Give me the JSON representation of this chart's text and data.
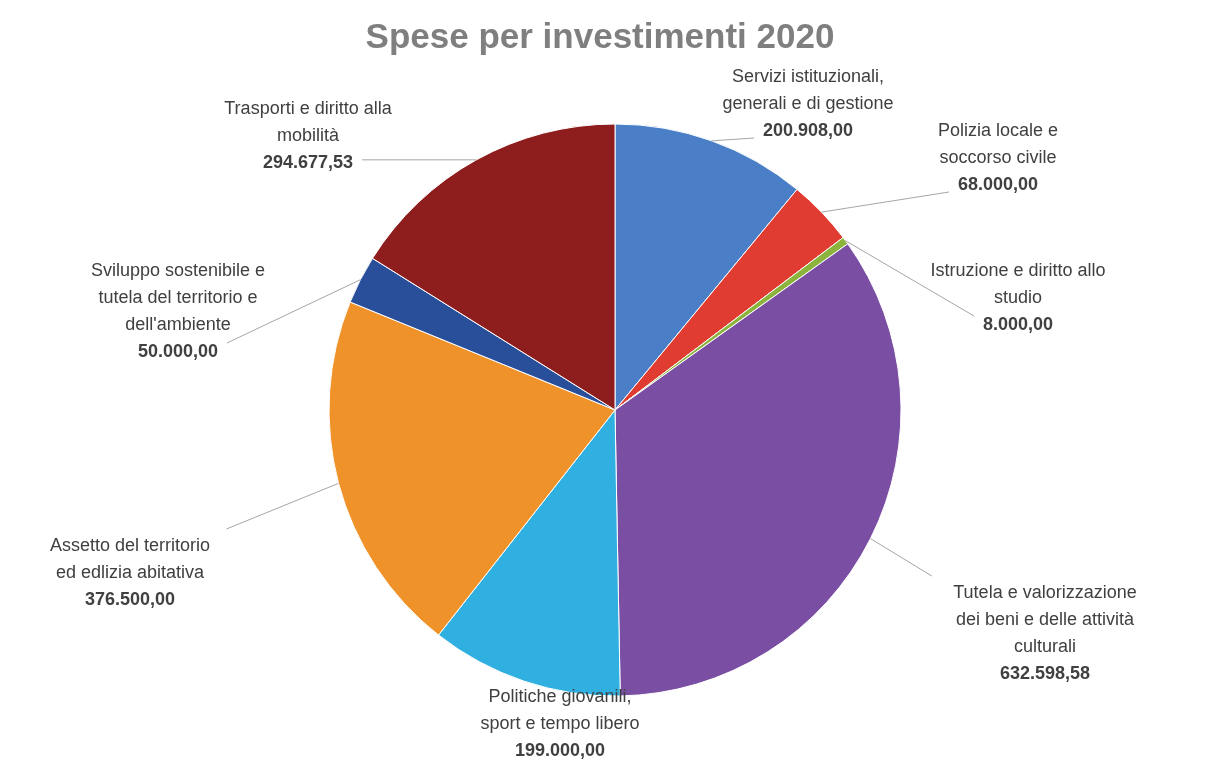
{
  "chart_data": {
    "type": "pie",
    "title": "Spese per investimenti 2020",
    "categories": [
      "Servizi istituzionali, generali e di gestione",
      "Polizia locale e soccorso civile",
      "Istruzione e diritto allo studio",
      "Tutela e valorizzazione dei beni e delle attività culturali",
      "Politiche giovanili, sport e tempo libero",
      "Assetto del territorio ed edlizia abitativa",
      "Sviluppo sostenibile e tutela del territorio e dell'ambiente",
      "Trasporti e diritto alla mobilità"
    ],
    "values": [
      200908,
      68000,
      8000,
      632598.58,
      199000,
      376500,
      50000,
      294677.53
    ],
    "value_labels": [
      "200.908,00",
      "68.000,00",
      "8.000,00",
      "632.598,58",
      "199.000,00",
      "376.500,00",
      "50.000,00",
      "294.677,53"
    ],
    "colors": [
      "#4a7fc8",
      "#e03c31",
      "#8cb43c",
      "#7a4fa3",
      "#2fb0e0",
      "#f0922a",
      "#2a4f9a",
      "#8e1e1e"
    ]
  }
}
